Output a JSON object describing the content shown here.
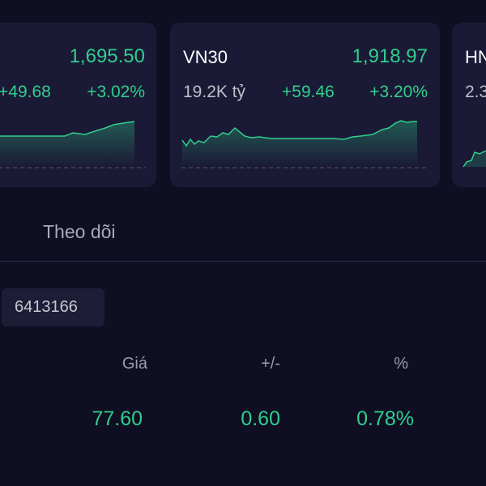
{
  "index_cards": [
    {
      "price": "1,695.50",
      "change": "+49.68",
      "percent": "+3.02%"
    },
    {
      "name": "VN30",
      "price": "1,918.97",
      "volume": "19.2K tỷ",
      "change": "+59.46",
      "percent": "+3.20%"
    },
    {
      "name": "HN",
      "volume": "2.3"
    }
  ],
  "tabs": {
    "follow": "Theo dõi"
  },
  "watchlist": {
    "chip": "6413166",
    "headers": [
      "Giá",
      "+/-",
      "%"
    ],
    "row": [
      "77.60",
      "0.60",
      "0.78%"
    ]
  }
}
